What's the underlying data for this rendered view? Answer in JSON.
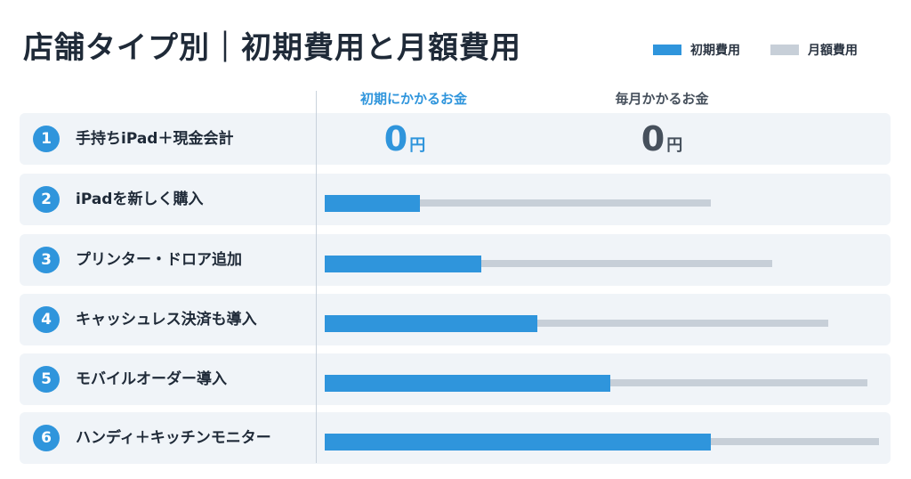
{
  "title": "店舗タイプ別｜初期費用と月額費用",
  "legend": [
    {
      "label": "初期費用",
      "color": "#2f95dc"
    },
    {
      "label": "月額費用",
      "color": "#c7cfd8"
    }
  ],
  "columns": {
    "initial": {
      "label": "初期にかかるお金",
      "color": "#2f95dc"
    },
    "monthly": {
      "label": "毎月かかるお金",
      "color": "#46505c"
    }
  },
  "row1_values": {
    "initial": {
      "value": "0",
      "unit": "円"
    },
    "monthly": {
      "value": "0",
      "unit": "円"
    }
  },
  "chart_data": {
    "type": "bar",
    "title": "店舗タイプ別｜初期費用と月額費用",
    "categories": [
      "手持ちiPad＋現金会計",
      "iPadを新しく購入",
      "プリンター・ドロア追加",
      "キャッシュレス決済も導入",
      "モバイルオーダー導入",
      "ハンディ＋キッチンモニター"
    ],
    "numbers": [
      "1",
      "2",
      "3",
      "4",
      "5",
      "6"
    ],
    "series": [
      {
        "name": "初期費用",
        "values": [
          0,
          17,
          28,
          38,
          51,
          69
        ]
      },
      {
        "name": "月額費用",
        "values": [
          0,
          69,
          80,
          90,
          97,
          99
        ]
      }
    ],
    "value_scale": "relative (0-100, unlabeled axis)",
    "xlim": [
      0,
      100
    ],
    "grid": false,
    "legend_position": "top-right"
  }
}
